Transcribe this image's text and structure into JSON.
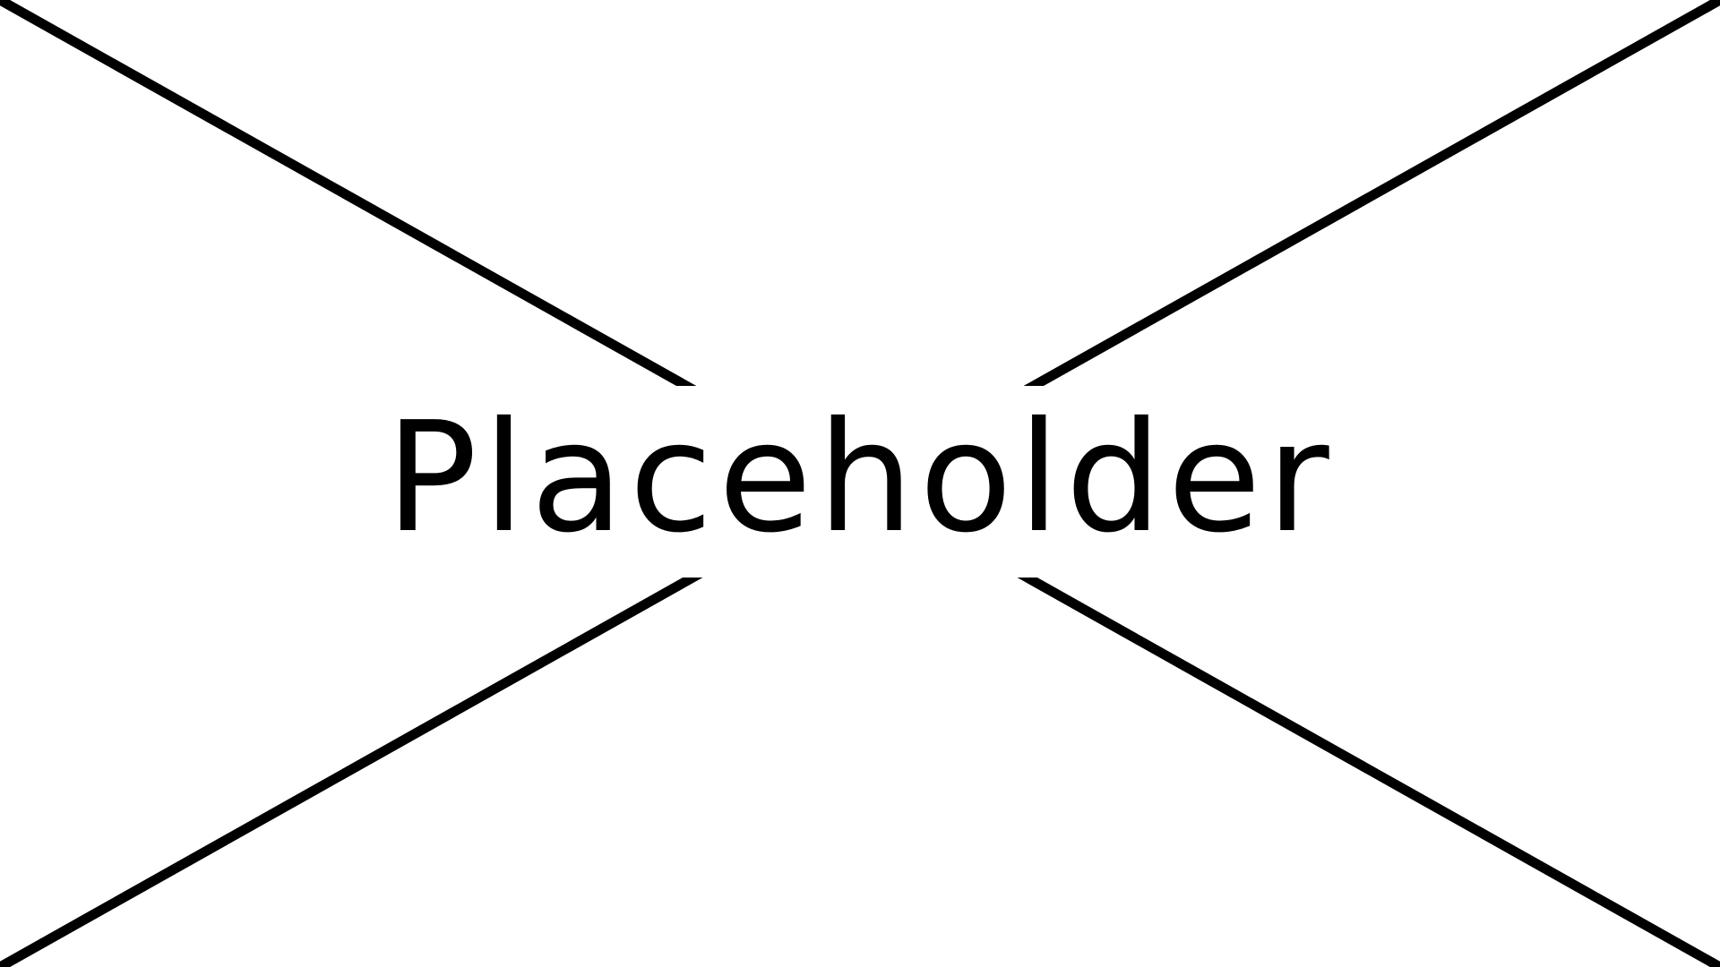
{
  "placeholder": {
    "label": "Placeholder",
    "stroke_color": "#000000",
    "background_color": "#ffffff"
  }
}
